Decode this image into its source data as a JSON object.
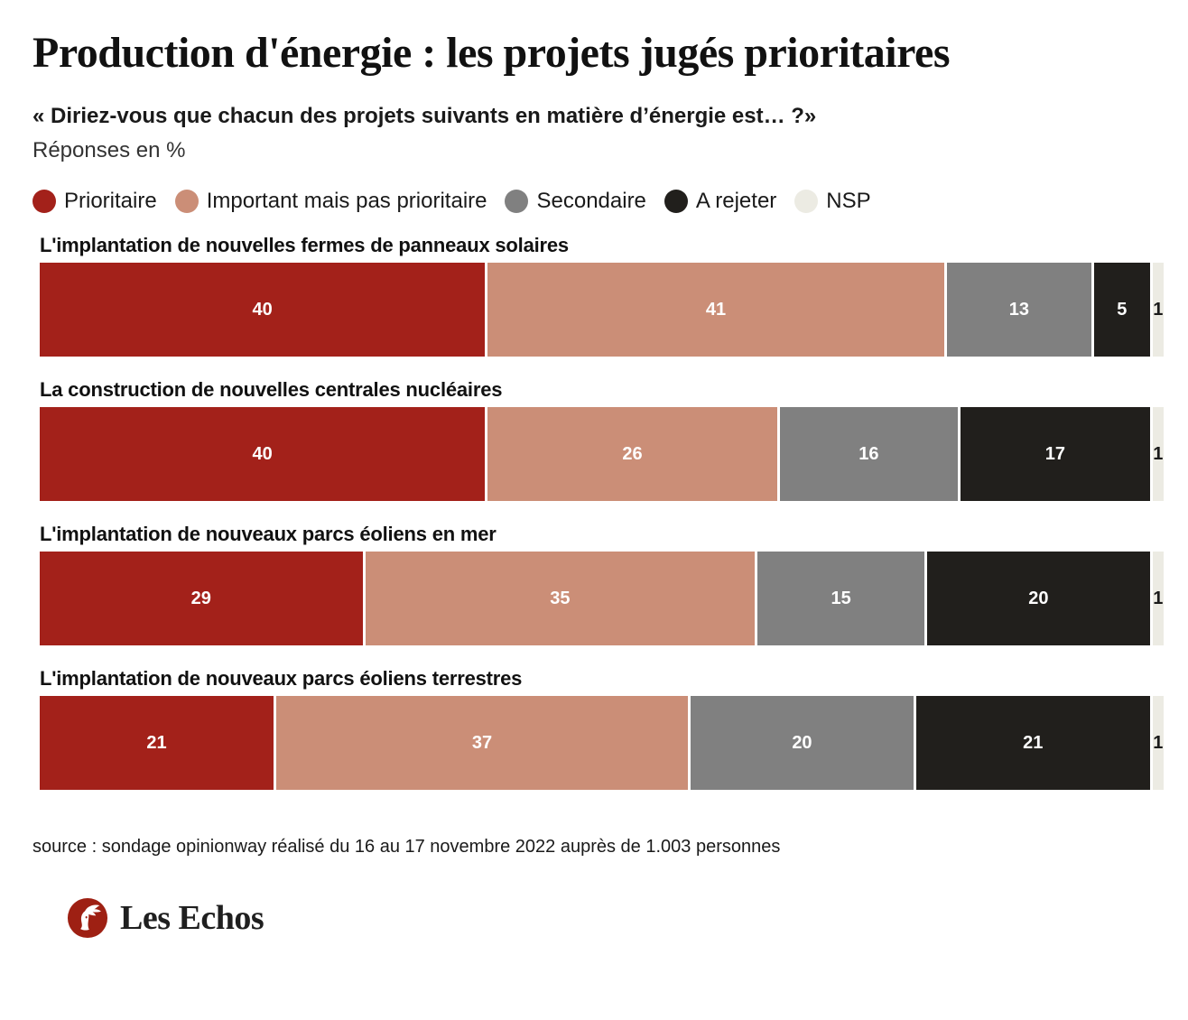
{
  "header": {
    "title": "Production d'énergie : les projets jugés prioritaires",
    "subtitle": "« Diriez-vous que chacun des projets suivants en matière d’énergie est… ?»",
    "unit_label": "Réponses en %"
  },
  "legend": [
    {
      "label": "Prioritaire",
      "color": "#a3211a"
    },
    {
      "label": "Important mais pas prioritaire",
      "color": "#cb8e77"
    },
    {
      "label": "Secondaire",
      "color": "#808080"
    },
    {
      "label": "A rejeter",
      "color": "#211f1c"
    },
    {
      "label": "NSP",
      "color": "#ecebe3"
    }
  ],
  "chart_data": {
    "type": "bar",
    "orientation": "horizontal-stacked",
    "title": "Production d'énergie : les projets jugés prioritaires",
    "unit": "%",
    "xlim": [
      0,
      100
    ],
    "grid": false,
    "legend_position": "top",
    "categories": [
      "L'implantation de nouvelles fermes de panneaux solaires",
      "La construction de nouvelles centrales nucléaires",
      "L'implantation de nouveaux parcs éoliens en mer",
      "L'implantation de nouveaux parcs éoliens terrestres"
    ],
    "series": [
      {
        "name": "Prioritaire",
        "color": "#a3211a",
        "text_color": "#ffffff",
        "values": [
          40,
          40,
          29,
          21
        ]
      },
      {
        "name": "Important mais pas prioritaire",
        "color": "#cb8e77",
        "text_color": "#ffffff",
        "values": [
          41,
          26,
          35,
          37
        ]
      },
      {
        "name": "Secondaire",
        "color": "#808080",
        "text_color": "#ffffff",
        "values": [
          13,
          16,
          15,
          20
        ]
      },
      {
        "name": "A rejeter",
        "color": "#211f1c",
        "text_color": "#ffffff",
        "values": [
          5,
          17,
          20,
          21
        ]
      },
      {
        "name": "NSP",
        "color": "#ecebe3",
        "text_color": "#1a1a1a",
        "values": [
          1,
          1,
          1,
          1
        ]
      }
    ]
  },
  "footer": {
    "source": "source : sondage opinionway réalisé du 16 au 17 novembre 2022 auprès de 1.003 personnes",
    "brand_display": "Les Echos",
    "brand_color": "#9e2013"
  }
}
